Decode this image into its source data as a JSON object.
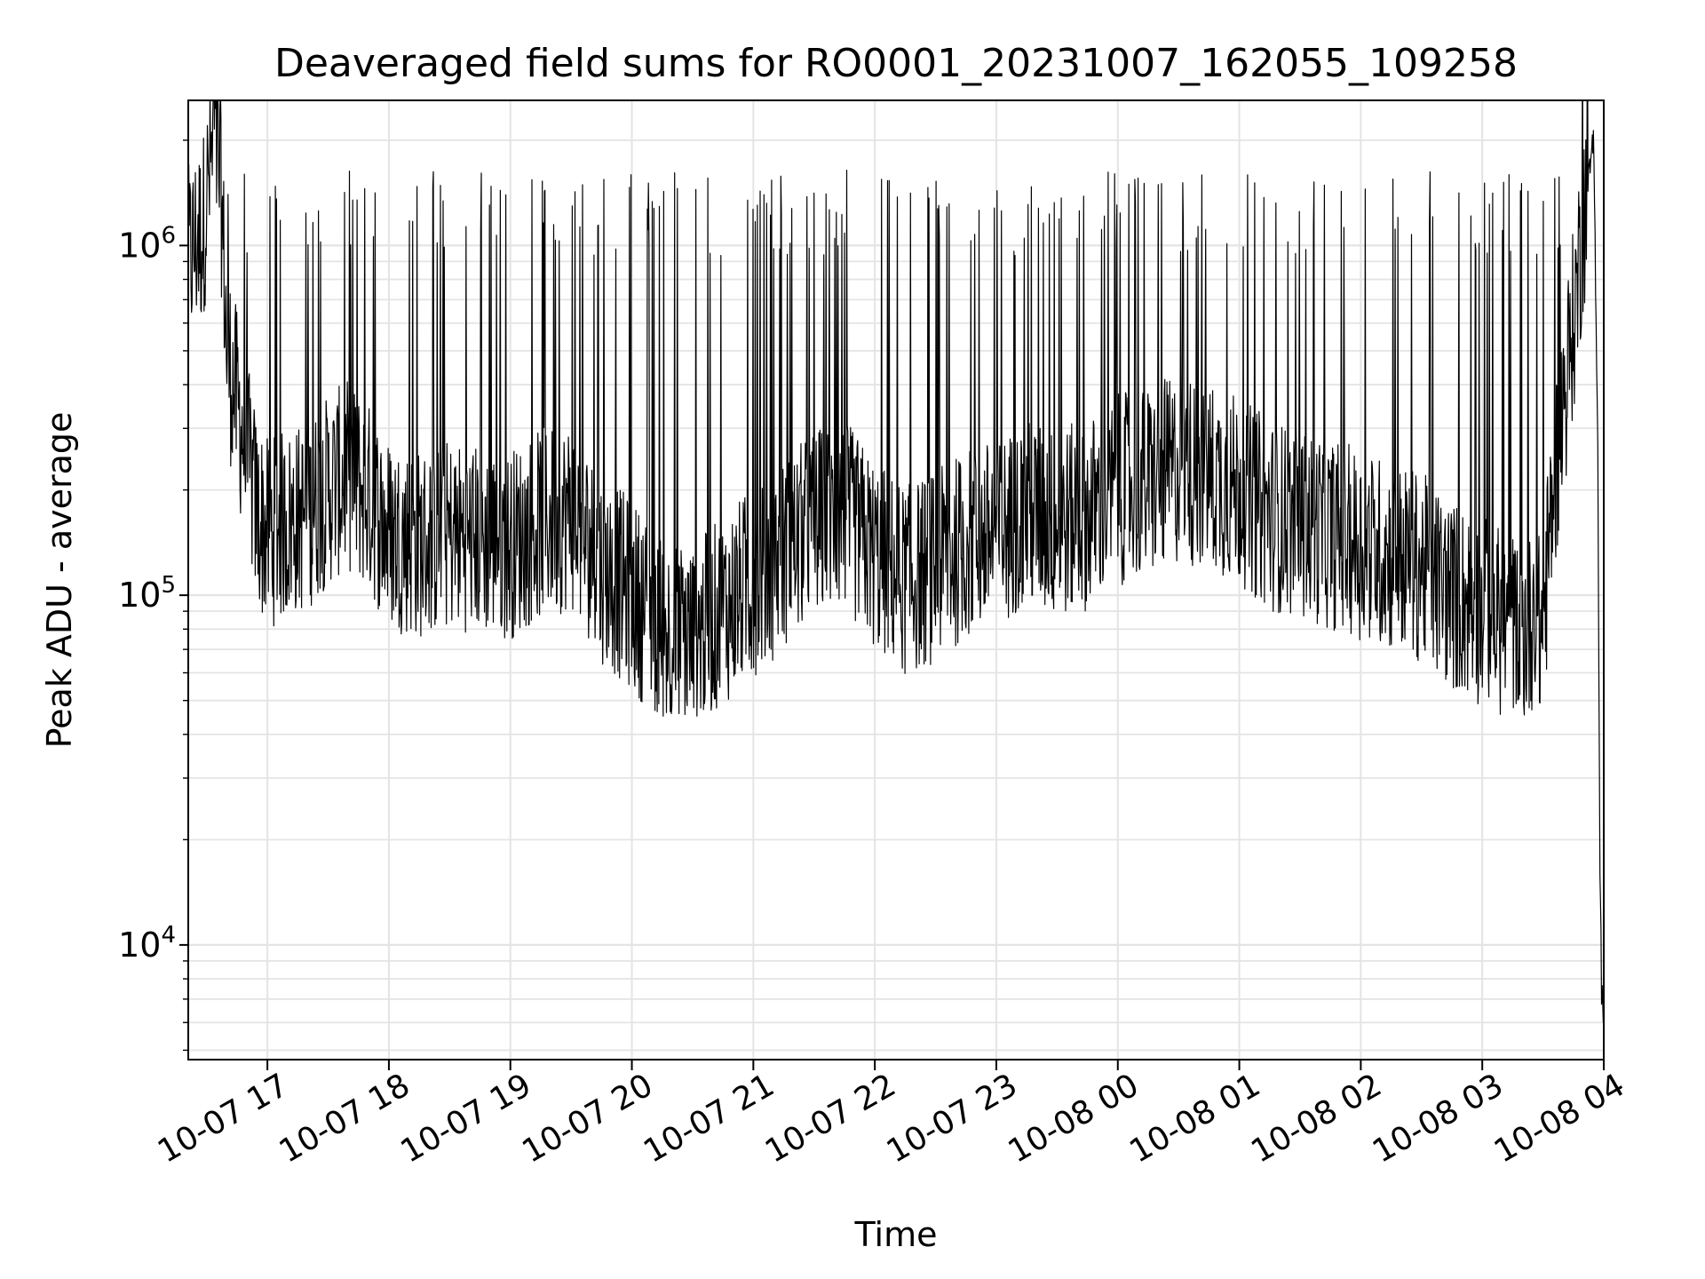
{
  "chart_data": {
    "type": "line",
    "title": "Deaveraged field sums for RO0001_20231007_162055_109258",
    "xlabel": "Time",
    "ylabel": "Peak ADU - average",
    "yscale": "log",
    "ylim": [
      4700,
      2600000
    ],
    "xlim": [
      "2023-10-07 16:20:55",
      "2023-10-08 04:00:00"
    ],
    "grid": true,
    "line_color": "#000000",
    "x_ticks": [
      "10-07 17",
      "10-07 18",
      "10-07 19",
      "10-07 20",
      "10-07 21",
      "10-07 22",
      "10-07 23",
      "10-08 00",
      "10-08 01",
      "10-08 02",
      "10-08 03",
      "10-08 04"
    ],
    "y_ticks": [
      {
        "base": "10",
        "exp": "4",
        "value": 10000
      },
      {
        "base": "10",
        "exp": "5",
        "value": 100000
      },
      {
        "base": "10",
        "exp": "6",
        "value": 1000000
      }
    ],
    "series": [
      {
        "x": [
          "2023-10-07 16:20:55",
          "2023-10-07 16:24:00",
          "2023-10-07 16:28:00",
          "2023-10-07 16:32:00",
          "2023-10-07 16:34:00",
          "2023-10-07 16:37:00",
          "2023-10-07 16:40:00",
          "2023-10-07 16:45:00",
          "2023-10-07 16:50:00",
          "2023-10-07 16:55:00",
          "2023-10-07 17:00:00",
          "2023-10-07 17:10:00",
          "2023-10-07 17:20:00",
          "2023-10-07 17:30:00",
          "2023-10-07 17:40:00",
          "2023-10-07 17:50:00",
          "2023-10-07 18:00:00",
          "2023-10-07 18:15:00",
          "2023-10-07 18:30:00",
          "2023-10-07 18:45:00",
          "2023-10-07 19:00:00",
          "2023-10-07 19:15:00",
          "2023-10-07 19:30:00",
          "2023-10-07 19:45:00",
          "2023-10-07 20:00:00",
          "2023-10-07 20:15:00",
          "2023-10-07 20:30:00",
          "2023-10-07 20:45:00",
          "2023-10-07 21:00:00",
          "2023-10-07 21:15:00",
          "2023-10-07 21:30:00",
          "2023-10-07 21:45:00",
          "2023-10-07 22:00:00",
          "2023-10-07 22:15:00",
          "2023-10-07 22:30:00",
          "2023-10-07 22:45:00",
          "2023-10-07 23:00:00",
          "2023-10-07 23:15:00",
          "2023-10-07 23:30:00",
          "2023-10-07 23:45:00",
          "2023-10-08 00:00:00",
          "2023-10-08 00:15:00",
          "2023-10-08 00:30:00",
          "2023-10-08 00:45:00",
          "2023-10-08 01:00:00",
          "2023-10-08 01:15:00",
          "2023-10-08 01:30:00",
          "2023-10-08 01:45:00",
          "2023-10-08 02:00:00",
          "2023-10-08 02:15:00",
          "2023-10-08 02:30:00",
          "2023-10-08 02:45:00",
          "2023-10-08 03:00:00",
          "2023-10-08 03:15:00",
          "2023-10-08 03:30:00",
          "2023-10-08 03:35:00",
          "2023-10-08 03:40:00",
          "2023-10-08 03:45:00",
          "2023-10-08 03:50:00",
          "2023-10-08 03:53:00",
          "2023-10-08 03:55:00",
          "2023-10-08 03:57:00",
          "2023-10-08 03:58:00",
          "2023-10-08 03:59:00",
          "2023-10-08 04:00:00"
        ],
        "y": [
          900000,
          1000000,
          1100000,
          1700000,
          2000000,
          1500000,
          500000,
          350000,
          250000,
          170000,
          150000,
          160000,
          170000,
          200000,
          220000,
          190000,
          150000,
          140000,
          150000,
          145000,
          140000,
          160000,
          170000,
          120000,
          100000,
          80000,
          75000,
          90000,
          110000,
          130000,
          160000,
          170000,
          130000,
          110000,
          120000,
          140000,
          150000,
          170000,
          160000,
          170000,
          200000,
          210000,
          230000,
          220000,
          200000,
          170000,
          160000,
          150000,
          140000,
          130000,
          120000,
          100000,
          90000,
          80000,
          80000,
          200000,
          350000,
          600000,
          1200000,
          1600000,
          2000000,
          300000,
          20000,
          7000,
          6500
        ],
        "spikes_max_approx": 1400000,
        "dips_min_approx": 45000
      }
    ]
  }
}
